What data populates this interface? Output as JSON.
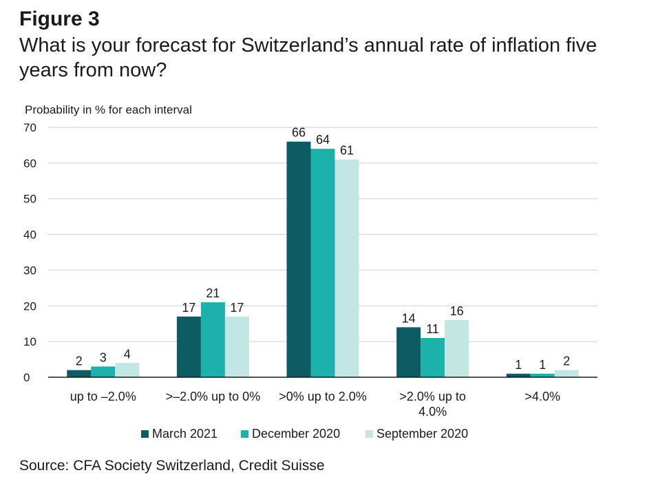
{
  "figure": {
    "label": "Figure 3",
    "title": "What is your forecast for Switzerland’s annual rate of inflation five years from now?",
    "source": "Source: CFA Society Switzerland, Credit Suisse"
  },
  "chart_data": {
    "type": "bar",
    "title": "What is your forecast for Switzerland’s annual rate of inflation five years from now?",
    "ylabel": "Probability in % for each interval",
    "xlabel": "",
    "ylim": [
      0,
      70
    ],
    "yticks": [
      0,
      10,
      20,
      30,
      40,
      50,
      60,
      70
    ],
    "grid": true,
    "legend_position": "bottom",
    "categories": [
      [
        "up to –2.0%"
      ],
      [
        ">–2.0% up to 0%"
      ],
      [
        ">0% up to 2.0%"
      ],
      [
        ">2.0% up to",
        "4.0%"
      ],
      [
        ">4.0%"
      ]
    ],
    "series": [
      {
        "name": "March 2021",
        "color": "#0d5c63",
        "values": [
          2,
          17,
          66,
          14,
          1
        ]
      },
      {
        "name": "December 2020",
        "color": "#1cb2ab",
        "values": [
          3,
          21,
          64,
          11,
          1
        ]
      },
      {
        "name": "September 2020",
        "color": "#c1e6e4",
        "values": [
          4,
          17,
          61,
          16,
          2
        ]
      }
    ]
  }
}
